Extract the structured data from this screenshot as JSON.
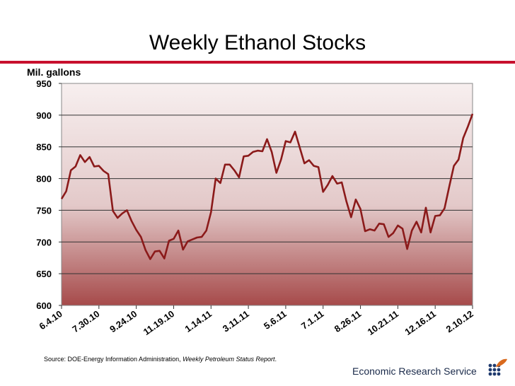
{
  "colors": {
    "accent_bar": "#c8102e",
    "line": "#8b1a1a",
    "plot_top": "#f7efef",
    "plot_bottom": "#a64a4a"
  },
  "chart_data": {
    "type": "line",
    "title": "Weekly Ethanol Stocks",
    "ylabel": "Mil. gallons",
    "xlabel": "",
    "ylim": [
      600,
      950
    ],
    "yticks": [
      600,
      650,
      700,
      750,
      800,
      850,
      900,
      950
    ],
    "grid": true,
    "x_tick_labels": [
      "6.4.10",
      "7.30.10",
      "9.24.10",
      "11.19.10",
      "1.14.11",
      "3.11.11",
      "5.6.11",
      "7.1.11",
      "8.26.11",
      "10.21.11",
      "12.16.11",
      "2.10.12"
    ],
    "series": [
      {
        "values": [
          768,
          780,
          813,
          819,
          837,
          826,
          834,
          819,
          820,
          812,
          807,
          749,
          738,
          745,
          750,
          733,
          719,
          708,
          687,
          673,
          685,
          686,
          674,
          702,
          705,
          718,
          688,
          701,
          704,
          707,
          708,
          718,
          747,
          800,
          793,
          822,
          822,
          813,
          802,
          835,
          836,
          842,
          844,
          843,
          862,
          842,
          809,
          830,
          859,
          857,
          874,
          849,
          824,
          829,
          820,
          818,
          779,
          790,
          804,
          792,
          794,
          764,
          739,
          767,
          752,
          717,
          720,
          718,
          729,
          728,
          708,
          714,
          726,
          721,
          689,
          718,
          732,
          715,
          754,
          715,
          741,
          742,
          753,
          787,
          820,
          830,
          864,
          882,
          902
        ]
      }
    ]
  },
  "source": {
    "prefix": "Source:  DOE-Energy Information Administration, ",
    "italic": "Weekly Petroleum Status Report",
    "suffix": "."
  },
  "footer": {
    "org": "Economic Research Service"
  },
  "logo": {
    "icon": "ers-logo-icon"
  }
}
